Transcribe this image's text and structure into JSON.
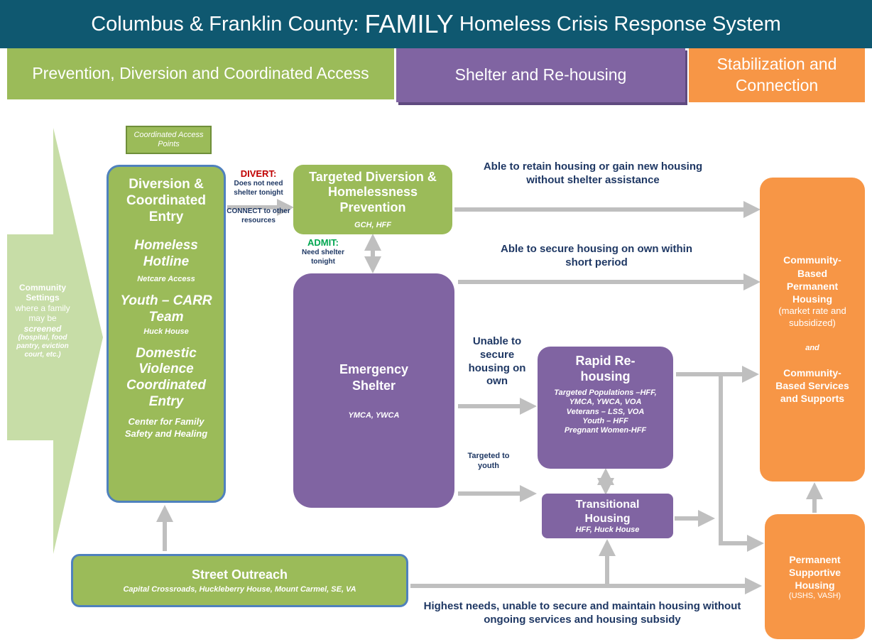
{
  "header": {
    "title_prefix": "Columbus & Franklin County:",
    "title_emphasis": "FAMILY",
    "title_suffix": "Homeless Crisis Response System"
  },
  "phases": [
    "Prevention, Diversion and Coordinated Access",
    "Shelter and Re-housing",
    "Stabilization and Connection"
  ],
  "community_settings": {
    "title": "Community Settings",
    "text1": "where a family may be",
    "emphasis": "screened",
    "examples": "(hospital, food pantry, eviction court, etc.)"
  },
  "access_points": "Coordinated Access Points",
  "nodes": {
    "diversion": {
      "title": "Diversion & Coordinated Entry",
      "items": [
        {
          "name": "Homeless Hotline",
          "provider": "Netcare Access"
        },
        {
          "name": "Youth – CARR Team",
          "provider": "Huck House"
        },
        {
          "name": "Domestic Violence Coordinated Entry",
          "provider": "Center for Family Safety and Healing"
        }
      ]
    },
    "targeted_diversion": {
      "title": "Targeted Diversion & Homelessness Prevention",
      "providers": "GCH, HFF"
    },
    "emergency_shelter": {
      "title": "Emergency Shelter",
      "providers": "YMCA, YWCA"
    },
    "rapid_rehousing": {
      "title": "Rapid Re-housing",
      "lines": [
        "Targeted Populations –HFF, YMCA, YWCA, VOA",
        "Veterans – LSS, VOA",
        "Youth – HFF",
        "Pregnant Women-HFF"
      ]
    },
    "transitional": {
      "title": "Transitional Housing",
      "providers": "HFF, Huck House"
    },
    "street_outreach": {
      "title": "Street Outreach",
      "providers": "Capital Crossroads, Huckleberry House, Mount Carmel, SE, VA"
    },
    "community_housing": {
      "title": "Community-Based Permanent Housing",
      "note": "(market rate and subsidized)",
      "conjunction": "and",
      "title2": "Community-Based Services and Supports"
    },
    "psh": {
      "title": "Permanent Supportive Housing",
      "providers": "(USHS, VASH)"
    }
  },
  "labels": {
    "divert": "DIVERT:",
    "divert_note": "Does not need shelter tonight",
    "connect": "CONNECT to other resources",
    "admit": "ADMIT:",
    "admit_note": "Need shelter tonight",
    "retain": "Able to retain housing or gain new housing without shelter assistance",
    "secure_own": "Able to secure housing on own within short period",
    "unable": "Unable to secure housing on own",
    "youth": "Targeted to youth",
    "highest": "Highest needs, unable to secure and maintain housing without ongoing services and housing subsidy"
  }
}
